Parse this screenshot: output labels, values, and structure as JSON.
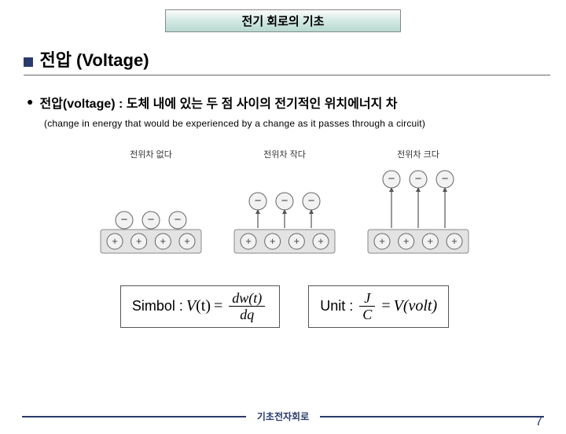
{
  "header": {
    "title": "전기 회로의 기초"
  },
  "section": {
    "title": "전압 (Voltage)"
  },
  "definition": {
    "main": "전압(voltage) : 도체 내에 있는 두 점 사이의 전기적인 위치에너지 차",
    "sub": "(change in energy that would be experienced by  a change as it passes through a circuit)"
  },
  "diagrams": {
    "labels": [
      "전위차 없다",
      "전위차 작다",
      "전위차 크다"
    ],
    "heights": [
      0,
      24,
      52
    ],
    "colors": {
      "sign_minus": "#444",
      "sign_plus": "#444",
      "circle_fill": "#f2f2f2",
      "circle_stroke": "#666",
      "slab_fill": "#e3e3e3",
      "slab_stroke": "#888",
      "arrow": "#555"
    }
  },
  "formulas": {
    "symbol": {
      "label": "Simbol :",
      "lhs_var": "V",
      "lhs_arg": "(t)",
      "eq": "=",
      "num": "dw(t)",
      "den": "dq"
    },
    "unit": {
      "label": "Unit  :",
      "num": "J",
      "den": "C",
      "eq": "=",
      "rhs_var": "V",
      "rhs_paren": "(volt)"
    }
  },
  "footer": {
    "center": "기초전자회로",
    "page": "7",
    "line_color": "#2a3b6b"
  }
}
